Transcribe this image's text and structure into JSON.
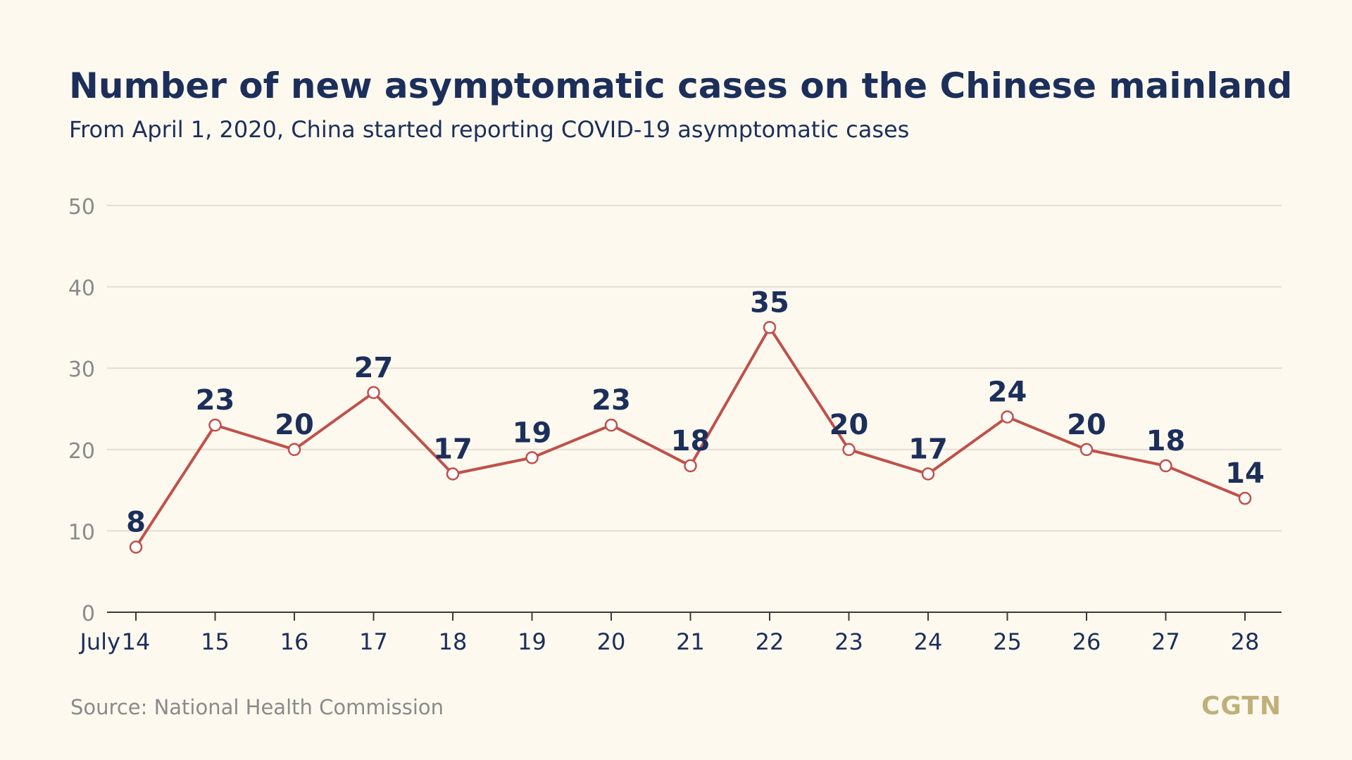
{
  "chart_data": {
    "type": "line",
    "title": "Number of new asymptomatic cases on the Chinese mainland",
    "subtitle": "From April 1, 2020, China started reporting COVID-19 asymptomatic cases",
    "x_prefix": "July",
    "categories": [
      "14",
      "15",
      "16",
      "17",
      "18",
      "19",
      "20",
      "21",
      "22",
      "23",
      "24",
      "25",
      "26",
      "27",
      "28"
    ],
    "values": [
      8,
      23,
      20,
      27,
      17,
      19,
      23,
      18,
      35,
      20,
      17,
      24,
      20,
      18,
      14
    ],
    "yticks": [
      0,
      10,
      20,
      30,
      40,
      50
    ],
    "ylim": [
      0,
      50
    ],
    "grid": true,
    "source": "Source: National Health Commission",
    "colors": {
      "line": "#c0504a",
      "label": "#1c2f5a",
      "tick": "#8a8a8a",
      "grid": "#e3ded2",
      "logo": "#bfb07a"
    }
  },
  "brand": {
    "logo": "CGTN"
  }
}
